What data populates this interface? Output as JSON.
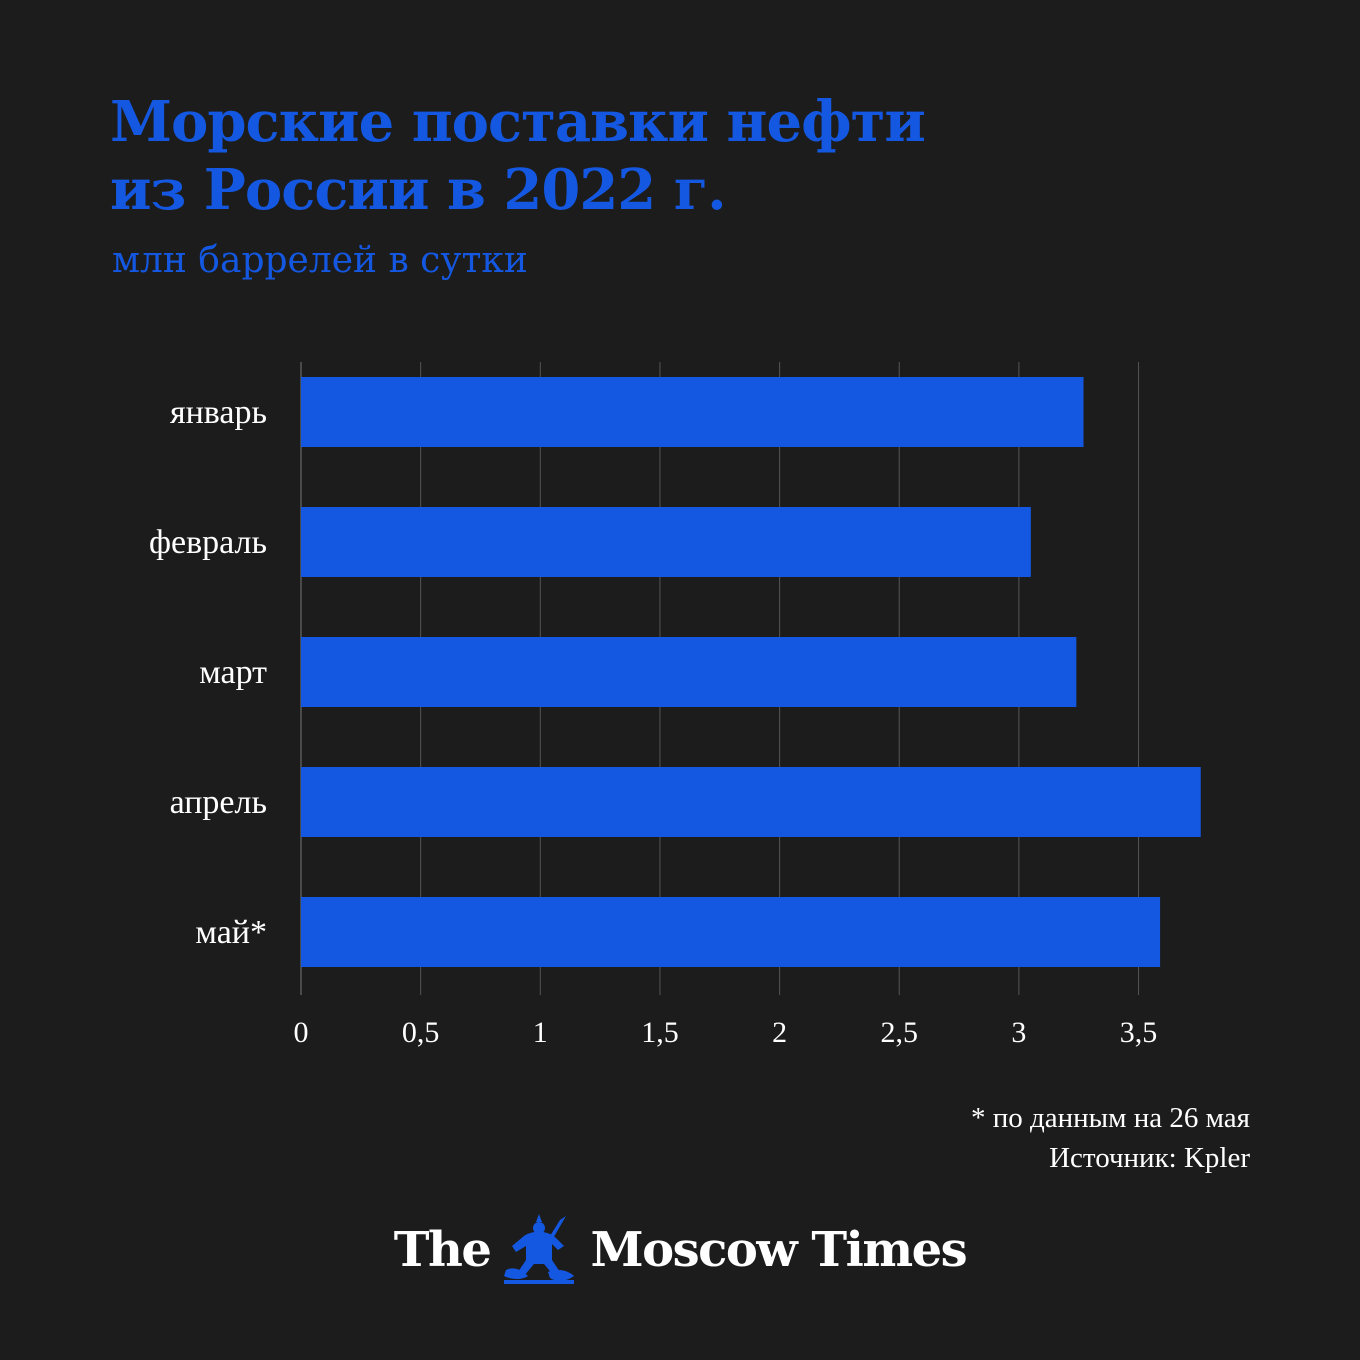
{
  "header": {
    "title_line1": "Морские поставки нефти",
    "title_line2": "из России в 2022 г.",
    "subtitle": "млн баррелей в сутки"
  },
  "colors": {
    "background": "#1c1c1c",
    "accent": "#1457e0",
    "text": "#ffffff",
    "grid": "#555555"
  },
  "chart_data": {
    "type": "bar",
    "orientation": "horizontal",
    "categories": [
      "январь",
      "февраль",
      "март",
      "апрель",
      "май*"
    ],
    "values": [
      3.27,
      3.05,
      3.24,
      3.76,
      3.59
    ],
    "xlim": [
      0,
      3.75
    ],
    "xticks": [
      0,
      0.5,
      1,
      1.5,
      2,
      2.5,
      3,
      3.5
    ],
    "xtick_labels": [
      "0",
      "0,5",
      "1",
      "1,5",
      "2",
      "2,5",
      "3",
      "3,5"
    ],
    "grid": true,
    "bar_color": "#1457e0"
  },
  "footer": {
    "footnote": "* по данным на 26 мая",
    "source": "Источник: Kpler"
  },
  "logo": {
    "left_text": "The",
    "right_text": "Moscow Times",
    "emblem_icon": "st-george-emblem-icon"
  }
}
